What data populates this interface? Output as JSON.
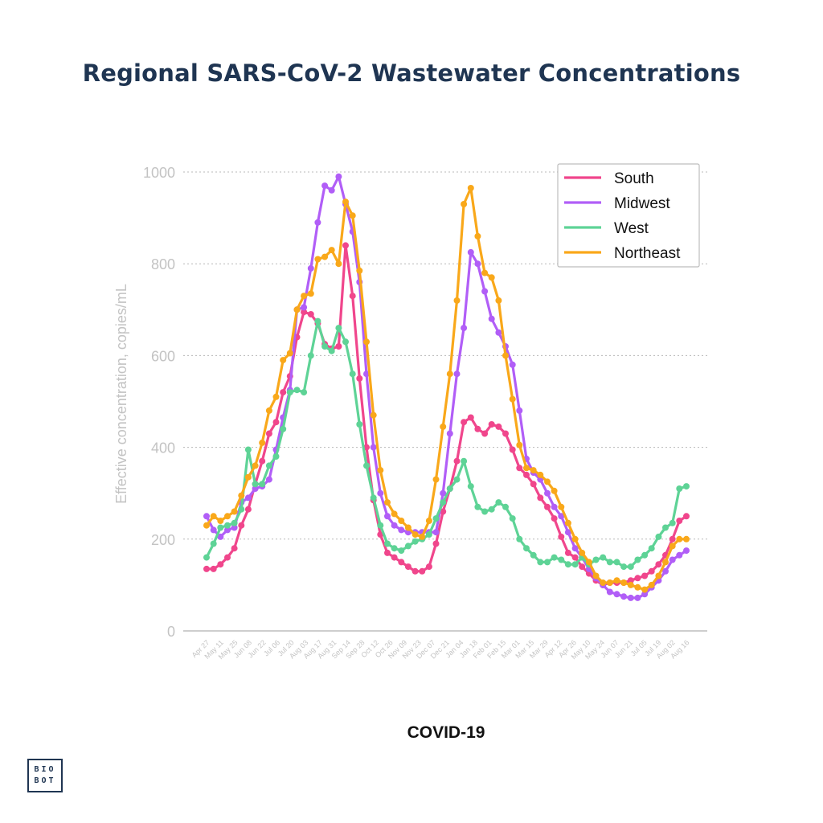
{
  "title": "Regional SARS-CoV-2 Wastewater Concentrations",
  "footer_label": "COVID-19",
  "logo": {
    "line1": "BIO",
    "line2": "BOT"
  },
  "chart_data": {
    "type": "line",
    "title": "Regional SARS-CoV-2 Wastewater Concentrations",
    "xlabel": "",
    "ylabel": "Effective concentration, copies/mL",
    "ylim": [
      0,
      1000
    ],
    "yticks": [
      0,
      200,
      400,
      600,
      800,
      1000
    ],
    "grid": "horizontal dotted",
    "legend_position": "top-right",
    "xtick_labels": [
      "Apr 27",
      "May 11",
      "May 25",
      "Jun 08",
      "Jun 22",
      "Jul 06",
      "Jul 20",
      "Aug 03",
      "Aug 17",
      "Aug 31",
      "Sep 14",
      "Sep 28",
      "Oct 12",
      "Oct 26",
      "Nov 09",
      "Nov 23",
      "Dec 07",
      "Dec 21",
      "Jan 04",
      "Jan 18",
      "Feb 01",
      "Feb 15",
      "Mar 01",
      "Mar 15",
      "Mar 29",
      "Apr 12",
      "Apr 26",
      "May 10",
      "May 24",
      "Jun 07",
      "Jun 21",
      "Jul 05",
      "Jul 19",
      "Aug 02",
      "Aug 16"
    ],
    "series": [
      {
        "name": "South",
        "color": "#f0468c",
        "values": [
          135,
          135,
          145,
          160,
          180,
          230,
          265,
          320,
          370,
          430,
          455,
          520,
          555,
          640,
          695,
          690,
          670,
          625,
          615,
          620,
          840,
          730,
          550,
          400,
          285,
          210,
          170,
          160,
          150,
          140,
          130,
          130,
          140,
          190,
          260,
          310,
          370,
          455,
          465,
          440,
          430,
          450,
          445,
          430,
          395,
          355,
          340,
          320,
          290,
          270,
          245,
          205,
          170,
          160,
          140,
          125,
          110,
          100,
          105,
          105,
          105,
          110,
          115,
          120,
          130,
          145,
          165,
          200,
          240,
          250
        ]
      },
      {
        "name": "Midwest",
        "color": "#b15ef7",
        "values": [
          250,
          220,
          205,
          220,
          225,
          280,
          290,
          310,
          315,
          330,
          395,
          465,
          525,
          700,
          705,
          790,
          890,
          970,
          960,
          990,
          930,
          870,
          760,
          560,
          400,
          300,
          250,
          230,
          220,
          215,
          215,
          215,
          215,
          215,
          300,
          430,
          560,
          660,
          825,
          800,
          740,
          680,
          650,
          620,
          580,
          480,
          375,
          345,
          330,
          300,
          270,
          250,
          215,
          180,
          160,
          135,
          115,
          100,
          85,
          80,
          75,
          72,
          72,
          80,
          95,
          110,
          130,
          155,
          165,
          175
        ]
      },
      {
        "name": "West",
        "color": "#5ed396",
        "values": [
          160,
          190,
          225,
          230,
          235,
          265,
          395,
          320,
          320,
          360,
          380,
          440,
          520,
          525,
          520,
          600,
          675,
          620,
          610,
          660,
          630,
          560,
          450,
          360,
          290,
          230,
          190,
          180,
          175,
          185,
          195,
          200,
          210,
          245,
          280,
          310,
          330,
          370,
          315,
          270,
          260,
          265,
          280,
          270,
          245,
          200,
          180,
          165,
          150,
          150,
          160,
          155,
          145,
          145,
          160,
          145,
          155,
          160,
          150,
          150,
          140,
          140,
          155,
          165,
          180,
          205,
          225,
          235,
          310,
          315
        ]
      },
      {
        "name": "Northeast",
        "color": "#f9a81a",
        "values": [
          230,
          250,
          240,
          250,
          260,
          295,
          335,
          360,
          410,
          480,
          510,
          590,
          605,
          700,
          730,
          735,
          810,
          815,
          830,
          800,
          935,
          905,
          785,
          630,
          470,
          350,
          280,
          255,
          240,
          225,
          210,
          205,
          240,
          330,
          445,
          560,
          720,
          930,
          965,
          860,
          780,
          770,
          720,
          600,
          505,
          405,
          355,
          350,
          340,
          325,
          305,
          270,
          235,
          200,
          170,
          150,
          120,
          105,
          105,
          110,
          105,
          100,
          95,
          90,
          100,
          120,
          150,
          185,
          200,
          200
        ]
      }
    ]
  }
}
